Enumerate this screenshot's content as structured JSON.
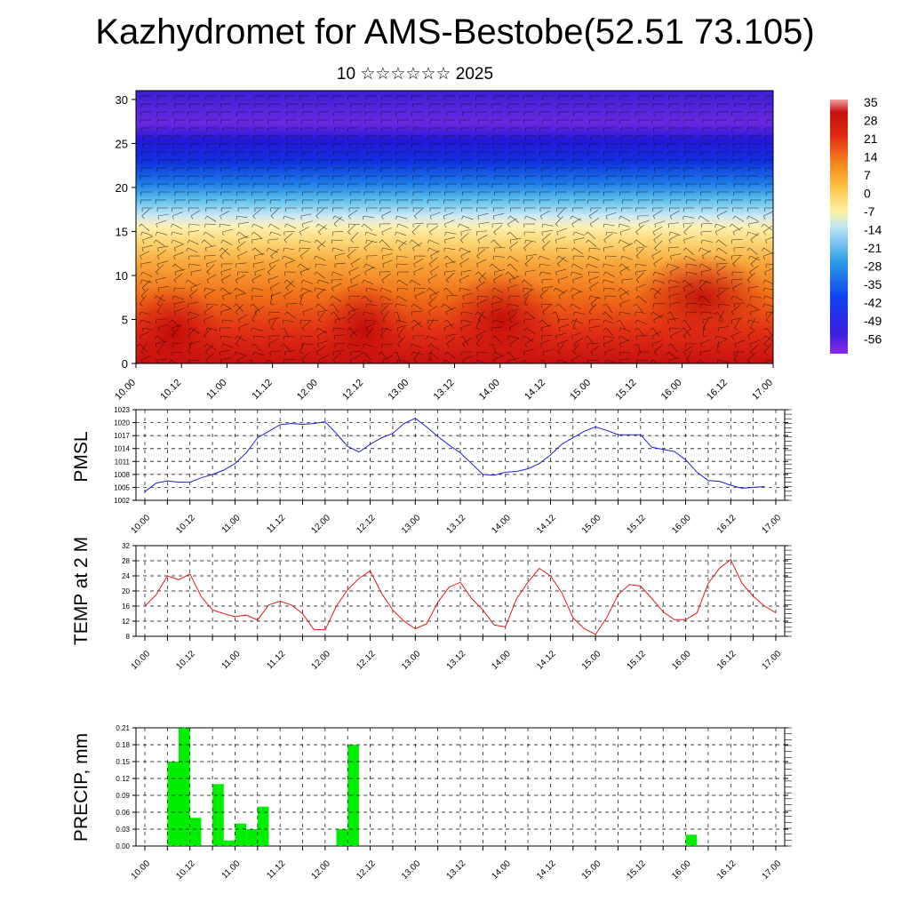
{
  "title": "Kazhydromet for AMS-Bestobe(52.51 73.105)",
  "subtitle": "10 ☆☆☆☆☆☆ 2025",
  "colors": {
    "pmsl_line": "#1f1fd6",
    "temp_line": "#e01818",
    "precip_bar": "#00ee00",
    "grid": "#000000"
  },
  "chart_data": [
    {
      "type": "heatmap",
      "name": "cross-section",
      "x_ticks": [
        "10.00",
        "10.12",
        "11.00",
        "11.12",
        "12.00",
        "12.12",
        "13.00",
        "13.12",
        "14.00",
        "14.12",
        "15.00",
        "15.12",
        "16.00",
        "16.12",
        "17.00"
      ],
      "y_ticks": [
        "0",
        "5",
        "10",
        "15",
        "20",
        "25",
        "30"
      ],
      "ylim": [
        0,
        31
      ],
      "colorbar_labels": [
        "35",
        "28",
        "21",
        "14",
        "7",
        "0",
        "-7",
        "-14",
        "-21",
        "-28",
        "-35",
        "-42",
        "-49",
        "-56"
      ],
      "overlay": "wind barbs"
    },
    {
      "type": "line",
      "ylabel": "PMSL",
      "x_ticks": [
        "10.00",
        "10.12",
        "11.00",
        "11.12",
        "12.00",
        "12.12",
        "13.00",
        "13.12",
        "14.00",
        "14.12",
        "15.00",
        "15.12",
        "16.00",
        "16.12",
        "17.00"
      ],
      "y_ticks": [
        "1023",
        "1020",
        "1017",
        "1014",
        "1011",
        "1008",
        "1005",
        "1002"
      ],
      "ylim": [
        1002,
        1023
      ],
      "x_hours": [
        0,
        3,
        6,
        9,
        12,
        15,
        18,
        21,
        24,
        27,
        30,
        33,
        36,
        39,
        42,
        45,
        48,
        51,
        54,
        57,
        60,
        63,
        66,
        69,
        72,
        75,
        78,
        81,
        84,
        87,
        90,
        93,
        96,
        99,
        102,
        105,
        108,
        111,
        114,
        117,
        120,
        123,
        126,
        129,
        132,
        135,
        138,
        141,
        144,
        147,
        150,
        153,
        156,
        159,
        162,
        165
      ],
      "values": [
        1004.0,
        1006.0,
        1006.5,
        1006.2,
        1006.2,
        1007.2,
        1008.0,
        1009.0,
        1010.5,
        1013.0,
        1016.5,
        1018.0,
        1019.5,
        1019.8,
        1019.6,
        1019.8,
        1020.2,
        1017.5,
        1014.5,
        1013.2,
        1015.0,
        1016.5,
        1017.5,
        1019.8,
        1021.0,
        1019.0,
        1016.8,
        1014.8,
        1013.0,
        1010.5,
        1008.0,
        1007.8,
        1008.5,
        1008.7,
        1009.3,
        1010.5,
        1012.5,
        1015.0,
        1016.5,
        1018.0,
        1019.0,
        1018.2,
        1017.2,
        1017.2,
        1017.2,
        1014.3,
        1013.8,
        1013.3,
        1011.4,
        1008.5,
        1006.6,
        1006.4,
        1005.5,
        1004.8,
        1005.0,
        1005.2
      ]
    },
    {
      "type": "line",
      "ylabel": "TEMP at 2 M",
      "x_ticks": [
        "10.00",
        "10.12",
        "11.00",
        "11.12",
        "12.00",
        "12.12",
        "13.00",
        "13.12",
        "14.00",
        "14.12",
        "15.00",
        "15.12",
        "16.00",
        "16.12",
        "17.00"
      ],
      "y_ticks": [
        "32",
        "28",
        "24",
        "20",
        "16",
        "12",
        "8"
      ],
      "ylim": [
        8,
        32
      ],
      "x_hours": [
        0,
        3,
        6,
        9,
        12,
        15,
        18,
        21,
        24,
        27,
        30,
        33,
        36,
        39,
        42,
        45,
        48,
        51,
        54,
        57,
        60,
        63,
        66,
        69,
        72,
        75,
        78,
        81,
        84,
        87,
        90,
        93,
        96,
        99,
        102,
        105,
        108,
        111,
        114,
        117,
        120,
        123,
        126,
        129,
        132,
        135,
        138,
        141,
        144,
        147,
        150,
        153,
        156,
        159,
        162,
        165,
        168
      ],
      "values": [
        16.0,
        19.0,
        24.0,
        23.0,
        24.5,
        18.5,
        15.0,
        14.0,
        13.2,
        13.6,
        12.3,
        16.3,
        17.3,
        16.3,
        14.0,
        9.8,
        9.7,
        16.0,
        20.3,
        23.3,
        25.3,
        19.4,
        15.0,
        12.0,
        10.0,
        11.3,
        17.0,
        21.0,
        22.3,
        18.0,
        15.0,
        11.0,
        10.5,
        18.0,
        22.3,
        26.0,
        24.0,
        19.6,
        12.9,
        10.0,
        8.5,
        13.0,
        19.0,
        21.7,
        21.3,
        18.0,
        14.5,
        12.4,
        12.4,
        14.2,
        22.0,
        26.0,
        28.3,
        22.0,
        18.6,
        16.0,
        14.2
      ]
    },
    {
      "type": "bar",
      "ylabel": "PRECIP, mm",
      "x_ticks": [
        "10.00",
        "10.12",
        "11.00",
        "11.12",
        "12.00",
        "12.12",
        "13.00",
        "13.12",
        "14.00",
        "14.12",
        "15.00",
        "15.12",
        "16.00",
        "16.12",
        "17.00"
      ],
      "y_ticks": [
        "0.21",
        "0.18",
        "0.15",
        "0.12",
        "0.09",
        "0.06",
        "0.03",
        "0.00"
      ],
      "ylim": [
        0,
        0.21
      ],
      "x_hours": [
        6,
        9,
        12,
        18,
        21,
        24,
        27,
        30,
        51,
        54,
        144
      ],
      "values": [
        0.15,
        0.21,
        0.05,
        0.11,
        0.01,
        0.04,
        0.03,
        0.07,
        0.03,
        0.18,
        0.02
      ]
    }
  ]
}
